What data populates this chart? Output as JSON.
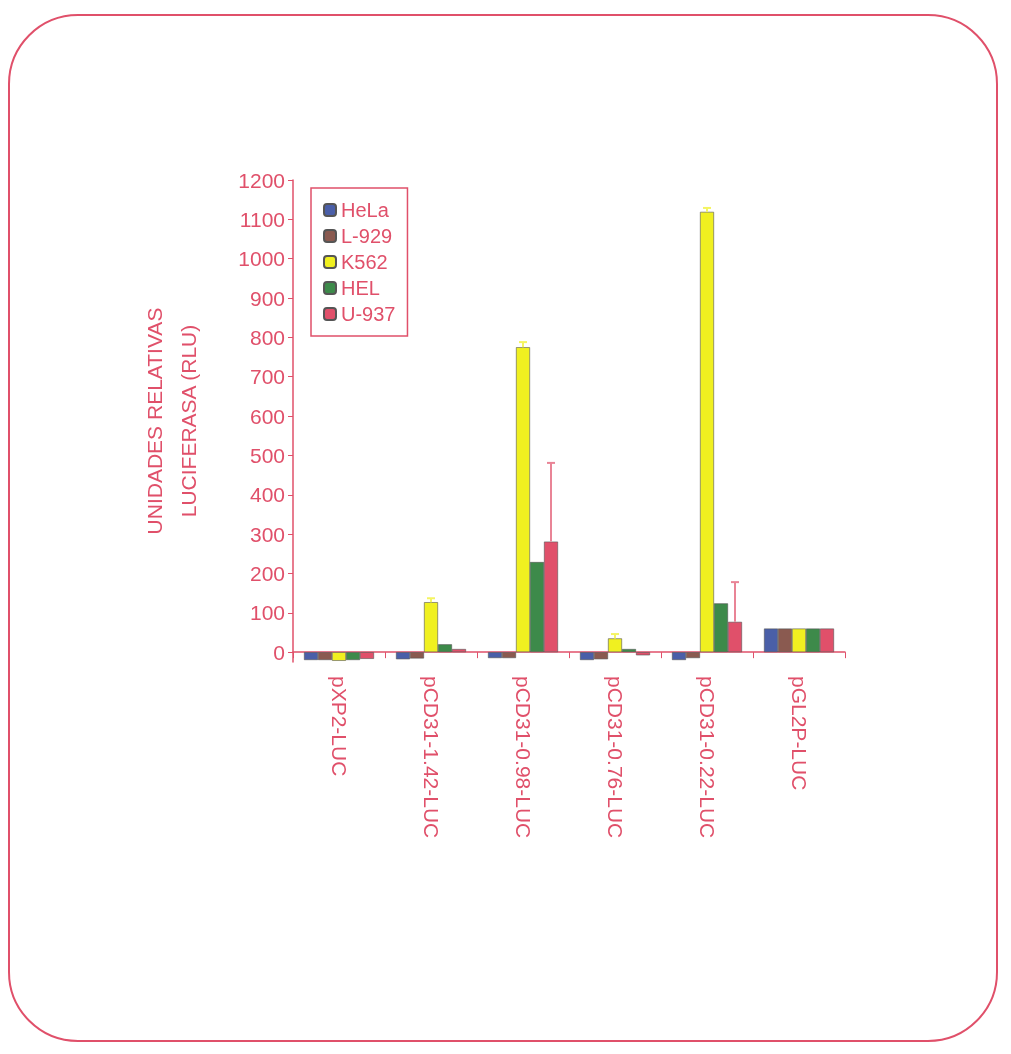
{
  "chart_data": {
    "type": "bar",
    "ylabel": "UNIDADES RELATIVAS\nLUCIFERASA (RLU)",
    "categories": [
      "pXP2-LUC",
      "pCD31-1.42-LUC",
      "pCD31-0.98-LUC",
      "pCD31-0.76-LUC",
      "pCD31-0.22-LUC",
      "pGL2P-LUC"
    ],
    "series": [
      {
        "name": "HeLa",
        "color": "#4a5fa8",
        "values": [
          -20,
          -18,
          -15,
          -20,
          -20,
          60
        ]
      },
      {
        "name": "L-929",
        "color": "#8a5a50",
        "values": [
          -20,
          -16,
          -15,
          -18,
          -15,
          60
        ]
      },
      {
        "name": "K562",
        "color": "#f0f020",
        "values": [
          -22,
          127,
          775,
          35,
          1119,
          60
        ],
        "errors": [
          null,
          10,
          13,
          11,
          10,
          null
        ]
      },
      {
        "name": "HEL",
        "color": "#3d8a4a",
        "values": [
          -20,
          20,
          229,
          8,
          124,
          60
        ]
      },
      {
        "name": "U-937",
        "color": "#e0506a",
        "values": [
          -17,
          8,
          281,
          -8,
          77,
          60
        ],
        "errors": [
          null,
          null,
          200,
          null,
          101,
          null
        ]
      }
    ],
    "ylim": [
      -25,
      1200
    ],
    "yticks": [
      0,
      100,
      200,
      300,
      400,
      500,
      600,
      700,
      800,
      900,
      1000,
      1100,
      1200
    ],
    "grid": false,
    "legend": "top left"
  }
}
